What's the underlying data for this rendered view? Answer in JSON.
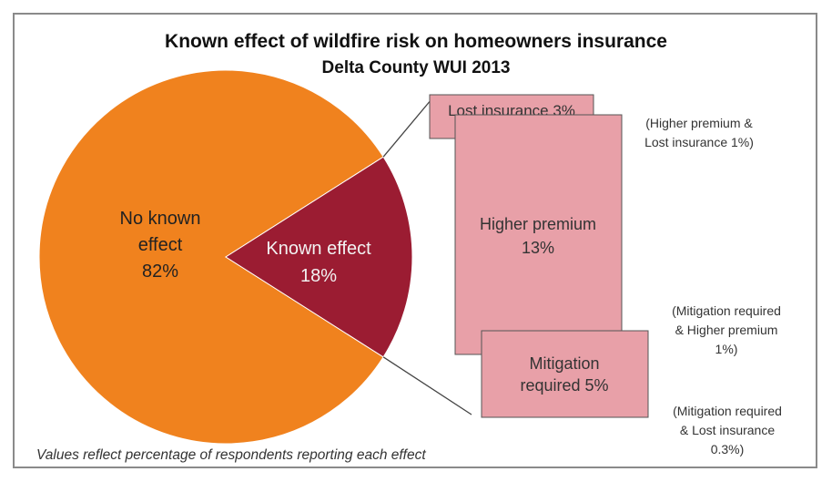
{
  "colors": {
    "no_effect": "#f0821e",
    "known_effect": "#9b1c32",
    "box_fill": "#e8a0a8",
    "box_stroke": "#555555",
    "connector": "#444444"
  },
  "chart_data": {
    "type": "pie",
    "title": "Known effect of wildfire risk on homeowners insurance",
    "subtitle": "Delta County WUI 2013",
    "slices": [
      {
        "label_lines": [
          "No known",
          "effect",
          "82%"
        ],
        "value": 82,
        "color": "#f0821e"
      },
      {
        "label_lines": [
          "Known effect",
          "18%"
        ],
        "value": 18,
        "color": "#9b1c32"
      }
    ],
    "breakdown": [
      {
        "label_lines": [
          "Lost insurance 3%"
        ],
        "value": 3
      },
      {
        "label_lines": [
          "Higher premium",
          "13%"
        ],
        "value": 13
      },
      {
        "label_lines": [
          "Mitigation",
          "required 5%"
        ],
        "value": 5
      }
    ],
    "overlap_notes": [
      {
        "lines": [
          "(Higher premium &",
          "Lost insurance 1%)"
        ],
        "value": 1
      },
      {
        "lines": [
          "(Mitigation required",
          "& Higher premium",
          "1%)"
        ],
        "value": 1
      },
      {
        "lines": [
          "(Mitigation required",
          "& Lost insurance",
          "0.3%)"
        ],
        "value": 0.3
      }
    ],
    "footnote": "Values reflect  percentage of respondents reporting each effect"
  }
}
